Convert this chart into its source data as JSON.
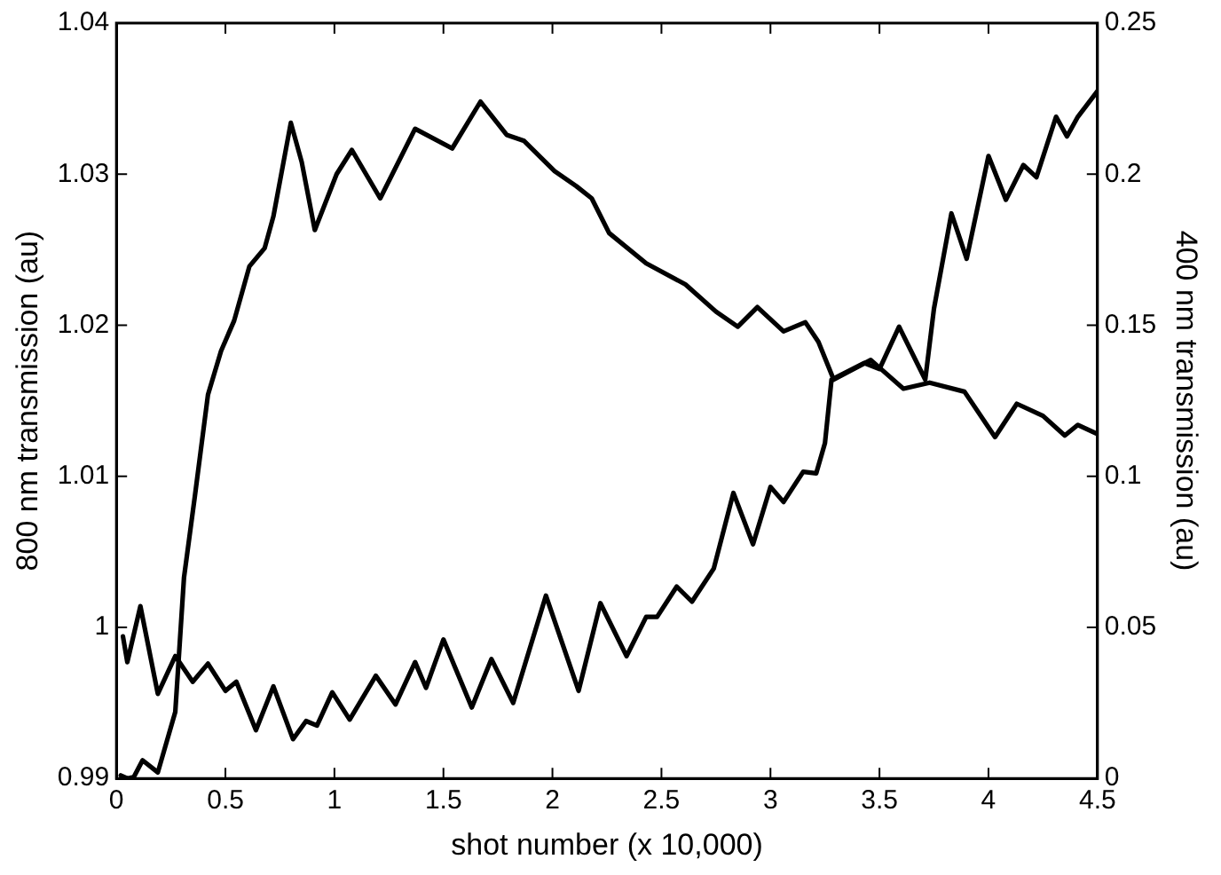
{
  "chart_data": {
    "type": "line",
    "xlabel": "shot number (x 10,000)",
    "ylabel": "800 nm transmission (au)",
    "y2label": "400 nm transmission (au)",
    "xlim": [
      0,
      4.5
    ],
    "xticks": [
      0,
      0.5,
      1,
      1.5,
      2,
      2.5,
      3,
      3.5,
      4,
      4.5
    ],
    "ylim": [
      0.99,
      1.04
    ],
    "yticks": [
      0.99,
      1,
      1.01,
      1.02,
      1.03,
      1.04
    ],
    "y2lim": [
      0,
      0.25
    ],
    "y2ticks": [
      0,
      0.05,
      0.1,
      0.15,
      0.2,
      0.25
    ],
    "legend": false,
    "marker": "none",
    "line_style": "solid",
    "series": [
      {
        "color": "#000000",
        "x": [
          0.02,
          0.05,
          0.08,
          0.12,
          0.19,
          0.27,
          0.31,
          0.36,
          0.42,
          0.48,
          0.54,
          0.61,
          0.68,
          0.72,
          0.8,
          0.85,
          0.91,
          1.01,
          1.08,
          1.21,
          1.37,
          1.54,
          1.67,
          1.79,
          1.87,
          2.01,
          2.11,
          2.18,
          2.26,
          2.43,
          2.61,
          2.75,
          2.85,
          2.94,
          3.06,
          3.16,
          3.22,
          3.29,
          3.46,
          3.61,
          3.73,
          3.89,
          4.03,
          4.13,
          4.25,
          4.35,
          4.41,
          4.5
        ],
        "values": [
          0.9902,
          0.99,
          0.9901,
          0.9912,
          0.9904,
          0.9944,
          1.0033,
          1.0087,
          1.0154,
          1.0183,
          1.0203,
          1.0239,
          1.0251,
          1.0272,
          1.0334,
          1.0308,
          1.0263,
          1.03,
          1.0316,
          1.0284,
          1.033,
          1.0317,
          1.0348,
          1.0326,
          1.0322,
          1.0302,
          1.0292,
          1.0284,
          1.0261,
          1.0241,
          1.0227,
          1.0209,
          1.0199,
          1.0212,
          1.0196,
          1.0202,
          1.0189,
          1.0164,
          1.0177,
          1.0158,
          1.0162,
          1.0156,
          1.0126,
          1.0148,
          1.014,
          1.0127,
          1.0134,
          1.0128
        ]
      },
      {
        "color": "#000000",
        "axis": "y2",
        "x": [
          0.03,
          0.05,
          0.11,
          0.19,
          0.27,
          0.35,
          0.42,
          0.5,
          0.55,
          0.64,
          0.72,
          0.81,
          0.87,
          0.92,
          0.99,
          1.07,
          1.19,
          1.28,
          1.37,
          1.42,
          1.5,
          1.63,
          1.72,
          1.82,
          1.97,
          2.12,
          2.22,
          2.34,
          2.43,
          2.48,
          2.57,
          2.64,
          2.74,
          2.83,
          2.92,
          3.0,
          3.06,
          3.15,
          3.21,
          3.25,
          3.28,
          3.43,
          3.5,
          3.59,
          3.71,
          3.75,
          3.83,
          3.9,
          4.0,
          4.08,
          4.16,
          4.22,
          4.31,
          4.36,
          4.41,
          4.5
        ],
        "values": [
          0.047,
          0.0385,
          0.057,
          0.028,
          0.0405,
          0.032,
          0.038,
          0.029,
          0.032,
          0.016,
          0.0305,
          0.013,
          0.019,
          0.0175,
          0.0285,
          0.0195,
          0.034,
          0.0245,
          0.0385,
          0.03,
          0.046,
          0.0235,
          0.0395,
          0.025,
          0.0605,
          0.029,
          0.058,
          0.0405,
          0.0535,
          0.0535,
          0.0635,
          0.0585,
          0.0695,
          0.0945,
          0.0775,
          0.0965,
          0.0915,
          0.1015,
          0.101,
          0.111,
          0.132,
          0.1375,
          0.1355,
          0.1495,
          0.132,
          0.1555,
          0.187,
          0.172,
          0.206,
          0.1915,
          0.203,
          0.199,
          0.219,
          0.2125,
          0.219,
          0.2275
        ]
      }
    ]
  }
}
